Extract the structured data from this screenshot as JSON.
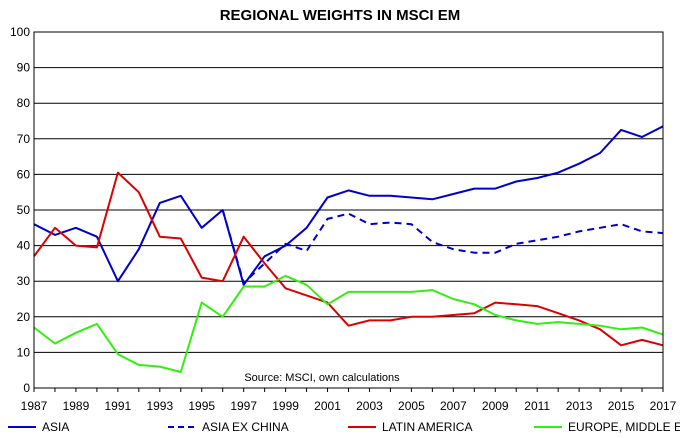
{
  "chart_data": {
    "type": "line",
    "title": "REGIONAL WEIGHTS IN MSCI EM",
    "source_note": "Source: MSCI, own calculations",
    "xlabel": "",
    "ylabel": "",
    "xlim": [
      1987,
      2017
    ],
    "ylim": [
      0,
      100
    ],
    "y_ticks": [
      0,
      10,
      20,
      30,
      40,
      50,
      60,
      70,
      80,
      90,
      100
    ],
    "x_ticks": [
      1987,
      1989,
      1991,
      1993,
      1995,
      1997,
      1999,
      2001,
      2003,
      2005,
      2007,
      2009,
      2011,
      2013,
      2015,
      2017
    ],
    "grid": "horizontal",
    "legend_position": "bottom",
    "series": [
      {
        "name": "ASIA",
        "color": "#0000cc",
        "style": "solid",
        "x": [
          1987,
          1988,
          1989,
          1990,
          1991,
          1992,
          1993,
          1994,
          1995,
          1996,
          1997,
          1998,
          1999,
          2000,
          2001,
          2002,
          2003,
          2004,
          2005,
          2006,
          2007,
          2008,
          2009,
          2010,
          2011,
          2012,
          2013,
          2014,
          2015,
          2016,
          2017
        ],
        "values": [
          46,
          43,
          45,
          42.5,
          30,
          39,
          52,
          54,
          45,
          50,
          29,
          37,
          40,
          45,
          53.5,
          55.5,
          54,
          54,
          53.5,
          53,
          54.5,
          56,
          56,
          58,
          59,
          60.5,
          63,
          66,
          72.5,
          70.5,
          73.5
        ]
      },
      {
        "name": "ASIA EX CHINA",
        "color": "#0000cc",
        "style": "dashed",
        "x": [
          1996,
          1997,
          1998,
          1999,
          2000,
          2001,
          2002,
          2003,
          2004,
          2005,
          2006,
          2007,
          2008,
          2009,
          2010,
          2011,
          2012,
          2013,
          2014,
          2015,
          2016,
          2017
        ],
        "values": [
          50,
          29.5,
          35,
          40.5,
          38.5,
          47.5,
          49,
          46,
          46.5,
          46,
          41,
          39,
          38,
          38,
          40.5,
          41.5,
          42.5,
          44,
          45,
          46,
          44,
          43.5
        ]
      },
      {
        "name": "LATIN AMERICA",
        "color": "#dd0000",
        "style": "solid",
        "x": [
          1987,
          1988,
          1989,
          1990,
          1991,
          1992,
          1993,
          1994,
          1995,
          1996,
          1997,
          1998,
          1999,
          2000,
          2001,
          2002,
          2003,
          2004,
          2005,
          2006,
          2007,
          2008,
          2009,
          2010,
          2011,
          2012,
          2013,
          2014,
          2015,
          2016,
          2017
        ],
        "values": [
          37,
          45,
          40,
          39.5,
          60.5,
          55,
          42.5,
          42,
          31,
          30,
          42.5,
          35,
          28,
          26,
          24,
          17.5,
          19,
          19,
          20,
          20,
          20.5,
          21,
          24,
          23.5,
          23,
          21,
          19,
          16.5,
          12,
          13.5,
          12
        ]
      },
      {
        "name": "EUROPE, MIDDLE EAST & AFRICA",
        "color": "#33ee11",
        "style": "solid",
        "x": [
          1987,
          1988,
          1989,
          1990,
          1991,
          1992,
          1993,
          1994,
          1995,
          1996,
          1997,
          1998,
          1999,
          2000,
          2001,
          2002,
          2003,
          2004,
          2005,
          2006,
          2007,
          2008,
          2009,
          2010,
          2011,
          2012,
          2013,
          2014,
          2015,
          2016,
          2017
        ],
        "values": [
          17,
          12.5,
          15.5,
          18,
          9.5,
          6.5,
          6,
          4.5,
          24,
          20,
          28.5,
          28.5,
          31.5,
          29,
          23.5,
          27,
          27,
          27,
          27,
          27.5,
          25,
          23.5,
          20.5,
          19,
          18,
          18.5,
          18,
          17.5,
          16.5,
          17,
          15
        ]
      }
    ]
  }
}
